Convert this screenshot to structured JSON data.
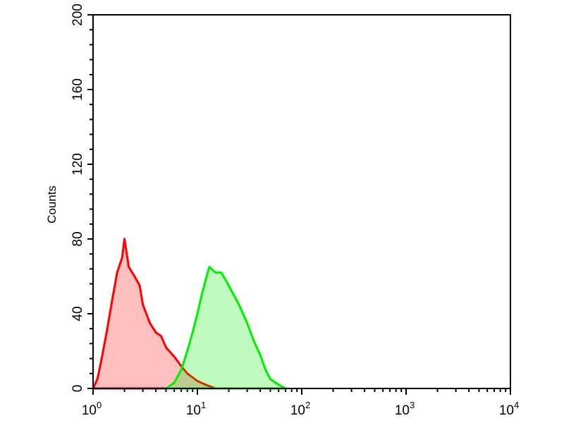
{
  "chart_data": {
    "type": "line",
    "title": "",
    "xlabel": "",
    "ylabel": "Counts",
    "x_scale": "log",
    "xlim": [
      1,
      10000
    ],
    "ylim": [
      0,
      200
    ],
    "grid": false,
    "x_ticks": [
      {
        "base": "10",
        "exp": "0",
        "value": 1
      },
      {
        "base": "10",
        "exp": "1",
        "value": 10
      },
      {
        "base": "10",
        "exp": "2",
        "value": 100
      },
      {
        "base": "10",
        "exp": "3",
        "value": 1000
      },
      {
        "base": "10",
        "exp": "4",
        "value": 10000
      }
    ],
    "y_ticks": [
      "0",
      "40",
      "80",
      "120",
      "160",
      "200"
    ],
    "series": [
      {
        "color": "#ff0000",
        "x": [
          1.0,
          1.1,
          1.2,
          1.35,
          1.5,
          1.7,
          1.9,
          2.0,
          2.2,
          2.5,
          2.8,
          3.0,
          3.5,
          4.0,
          4.5,
          5.0,
          6.0,
          7.0,
          8.0,
          10.0,
          12.0,
          15.0
        ],
        "y": [
          0,
          5,
          15,
          30,
          45,
          62,
          70,
          80,
          65,
          60,
          55,
          45,
          35,
          30,
          28,
          22,
          17,
          12,
          8,
          4,
          2,
          0
        ]
      },
      {
        "color": "#00ee00",
        "x": [
          5,
          6,
          7,
          8,
          9,
          10,
          11,
          12,
          13,
          15,
          17,
          20,
          25,
          30,
          35,
          40,
          45,
          50,
          60,
          70
        ],
        "y": [
          0,
          3,
          10,
          20,
          30,
          40,
          50,
          58,
          65,
          62,
          62,
          55,
          45,
          35,
          25,
          18,
          10,
          5,
          2,
          0
        ]
      }
    ]
  }
}
